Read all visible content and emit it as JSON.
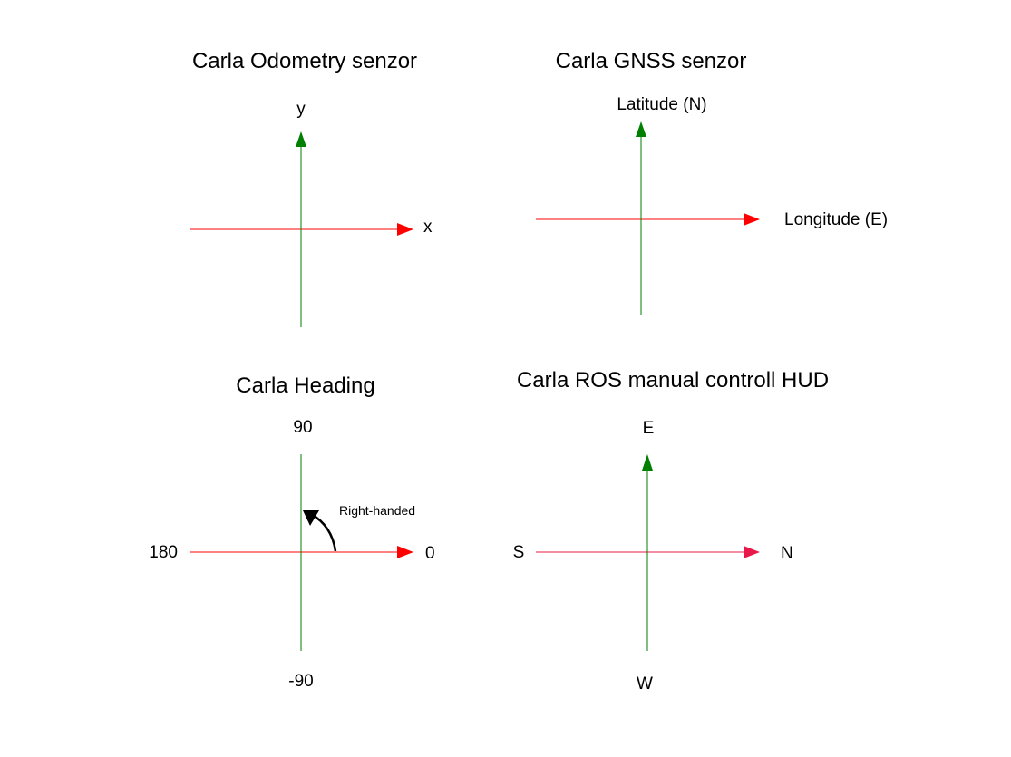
{
  "colors": {
    "x_axis": "#ff0000",
    "y_axis": "#007f00",
    "hud_x_axis": "#e8194a",
    "rotation_arrow": "#000000",
    "background": "#ffffff",
    "text": "#000000"
  },
  "odometry": {
    "title": "Carla Odometry senzor",
    "x_label": "x",
    "y_label": "y"
  },
  "gnss": {
    "title": "Carla GNSS senzor",
    "north_label": "Latitude (N)",
    "east_label": "Longitude (E)"
  },
  "heading": {
    "title": "Carla Heading",
    "top_label": "90",
    "bottom_label": "-90",
    "left_label": "180",
    "right_label": "0",
    "rotation_label": "Right-handed"
  },
  "hud": {
    "title": "Carla ROS manual controll HUD",
    "top_label": "E",
    "bottom_label": "W",
    "left_label": "S",
    "right_label": "N"
  }
}
